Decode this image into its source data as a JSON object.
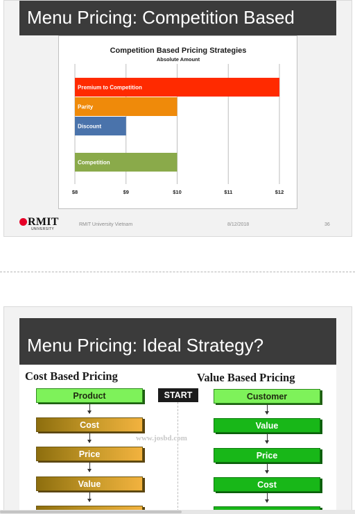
{
  "slide1": {
    "title": "Menu Pricing: Competition Based",
    "footer": {
      "logo_text": "RMIT",
      "logo_sub": "UNIVERSITY",
      "org": "RMIT University Vietnam",
      "date": "8/12/2018",
      "page": "36"
    }
  },
  "chart_data": {
    "type": "bar",
    "orientation": "horizontal",
    "title": "Competition Based Pricing Strategies",
    "subtitle": "Absolute Amount",
    "categories": [
      "Premium to Competition",
      "Parity",
      "Discount",
      "Competition"
    ],
    "values": [
      12,
      10,
      9,
      10
    ],
    "colors": [
      "#ff2a00",
      "#ef8a0a",
      "#4a73ab",
      "#8aaa4a"
    ],
    "xlim": [
      8,
      12
    ],
    "xticks": [
      8,
      9,
      10,
      11,
      12
    ],
    "tick_labels": [
      "$8",
      "$9",
      "$10",
      "$11",
      "$12"
    ],
    "xlabel": "",
    "ylabel": "",
    "grid": true
  },
  "slide2": {
    "title": "Menu Pricing: Ideal Strategy?",
    "cost_heading": "Cost Based Pricing",
    "value_heading": "Value Based Pricing",
    "start_label": "START",
    "watermark": "www.josbd.com",
    "cost_steps": [
      "Product",
      "Cost",
      "Price",
      "Value"
    ],
    "value_steps": [
      "Customer",
      "Value",
      "Price",
      "Cost"
    ]
  }
}
